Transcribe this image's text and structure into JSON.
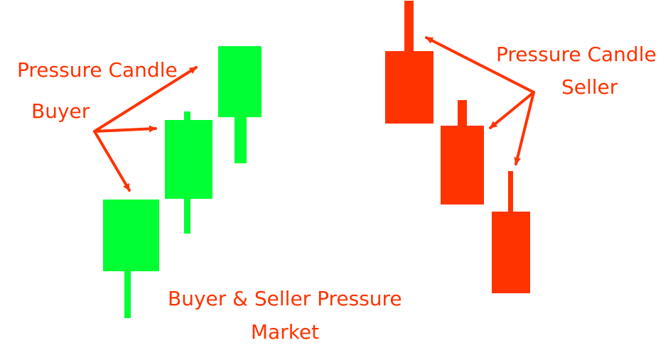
{
  "labels": {
    "buyer_title": "Pressure Candle",
    "buyer_subtitle": "Buyer",
    "seller_title": "Pressure Candle",
    "seller_subtitle": "Seller",
    "market_line1": "Buyer & Seller Pressure",
    "market_line2": "Market"
  },
  "colors": {
    "buyer": "#00ff33",
    "seller": "#ff3300",
    "arrow": "#ff3300",
    "text": "#ff3300"
  },
  "icons": {
    "arrow": "arrow-icon",
    "candle": "candlestick-icon"
  }
}
